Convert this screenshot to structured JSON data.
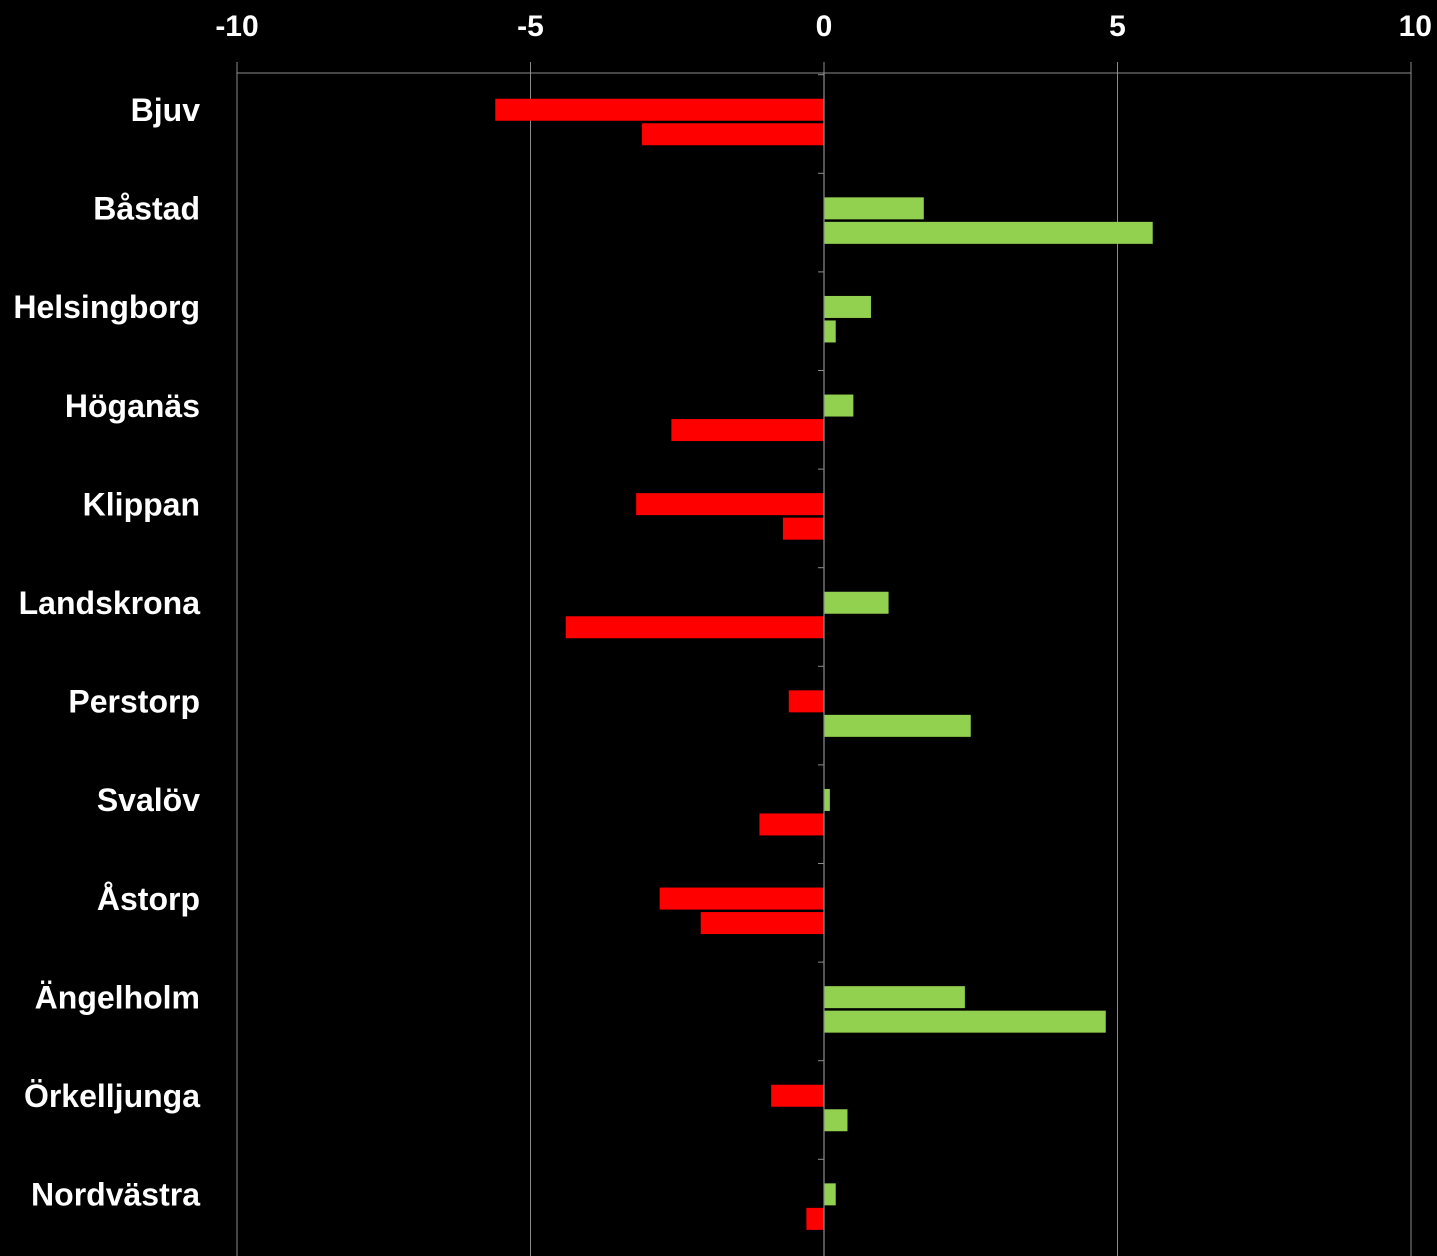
{
  "chart_data": {
    "type": "bar",
    "orientation": "horizontal",
    "categories": [
      "Bjuv",
      "Båstad",
      "Helsingborg",
      "Höganäs",
      "Klippan",
      "Landskrona",
      "Perstorp",
      "Svalöv",
      "Åstorp",
      "Ängelholm",
      "Örkelljunga",
      "Nordvästra"
    ],
    "series": [
      {
        "values": [
          -5.6,
          1.7,
          0.8,
          0.5,
          -3.2,
          1.1,
          -0.6,
          0.1,
          -2.8,
          2.4,
          -0.9,
          0.2
        ]
      },
      {
        "values": [
          -3.1,
          5.6,
          0.2,
          -2.6,
          -0.7,
          -4.4,
          2.5,
          -1.1,
          -2.1,
          4.8,
          0.4,
          -0.3
        ]
      }
    ],
    "xlim": [
      -10,
      10
    ],
    "xticks": [
      -10,
      -5,
      0,
      5,
      10
    ],
    "xtick_labels": [
      "-10",
      "-5",
      "0",
      "5",
      "10"
    ],
    "axis_position": "top",
    "grid": "vertical",
    "legend": "none",
    "colors": {
      "positive": "#92d050",
      "negative": "#ff0000",
      "background": "#000000",
      "grid": "#8c8c8c",
      "text": "#ffffff"
    }
  }
}
